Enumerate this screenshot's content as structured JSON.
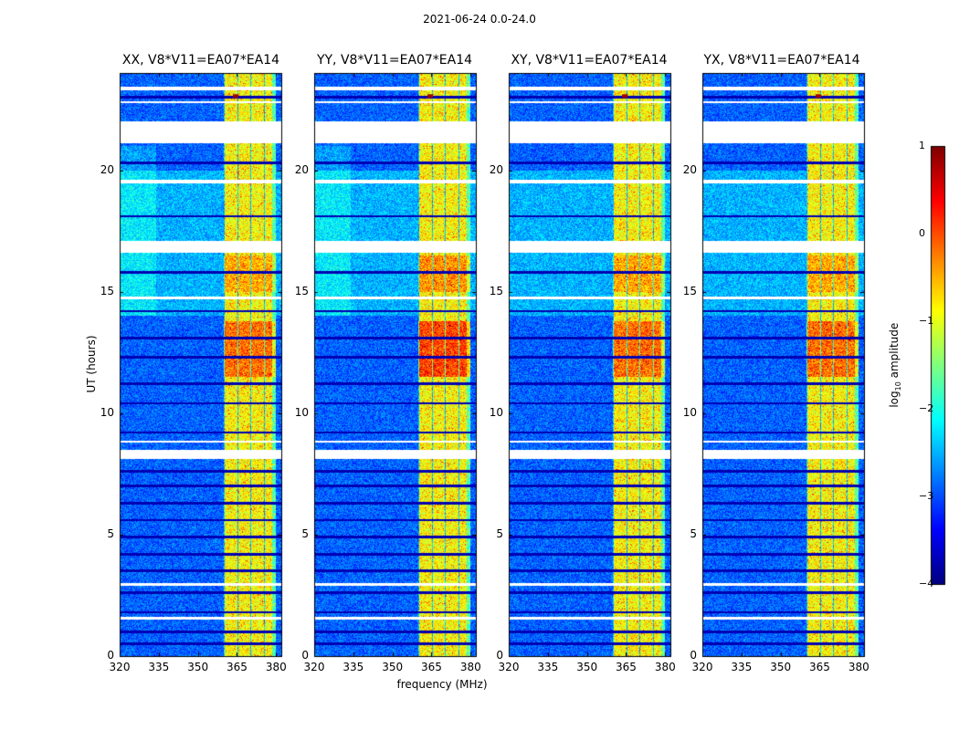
{
  "chart_data": {
    "type": "heatmap",
    "suptitle": "2021-06-24 0.0-24.0",
    "xlabel": "frequency (MHz)",
    "ylabel": "UT (hours)",
    "xlim": [
      320,
      382
    ],
    "ylim": [
      0,
      24
    ],
    "xticks": [
      "320",
      "335",
      "350",
      "365",
      "380"
    ],
    "yticks": [
      "0",
      "5",
      "10",
      "15",
      "20"
    ],
    "colorbar": {
      "label": "log",
      "label_sub": "10",
      "label_rest": " amplitude",
      "range": [
        -4,
        1
      ],
      "ticks": [
        "1",
        "0",
        "−1",
        "−2",
        "−3",
        "−4"
      ],
      "colormap": "jet"
    },
    "panels": [
      {
        "title": "XX, V8*V11=EA07*EA14",
        "pol": "XX"
      },
      {
        "title": "YY, V8*V11=EA07*EA14",
        "pol": "YY"
      },
      {
        "title": "XY, V8*V11=EA07*EA14",
        "pol": "XY"
      },
      {
        "title": "YX, V8*V11=EA07*EA14",
        "pol": "YX"
      }
    ],
    "bright_band_mhz": [
      360,
      380
    ],
    "flagged_gaps_ut": [
      [
        21.1,
        22.0
      ],
      [
        16.6,
        17.1
      ],
      [
        8.1,
        8.5
      ]
    ]
  }
}
